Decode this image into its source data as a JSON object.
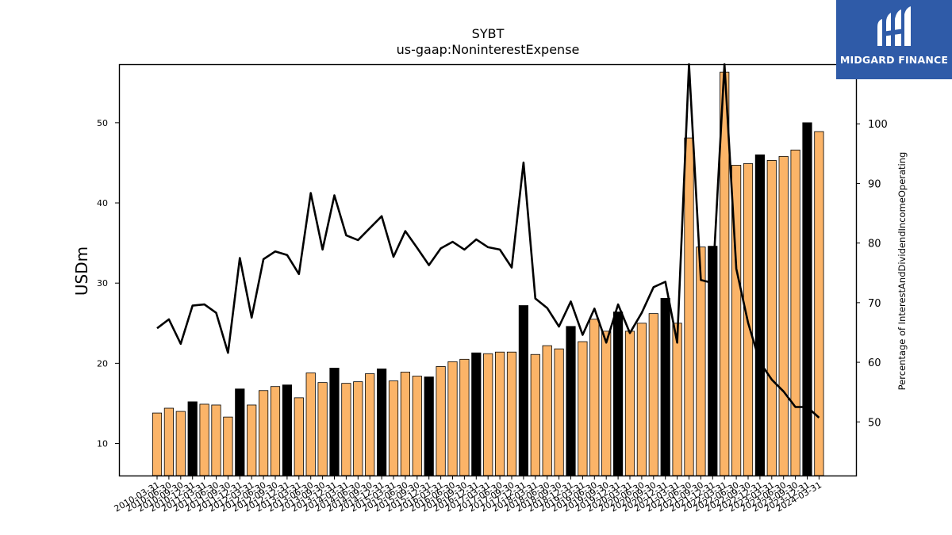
{
  "chart_data": {
    "type": "bar",
    "title": "SYBT",
    "subtitle": "us-gaap:NoninterestExpense",
    "ylabel": "USDm",
    "y2label": "Percentage of InterestAndDividendIncomeOperating",
    "ylim": [
      6,
      57.3
    ],
    "y2lim": [
      41,
      110
    ],
    "yticks": [
      10,
      20,
      30,
      40,
      50
    ],
    "y2ticks": [
      50,
      60,
      70,
      80,
      90,
      100
    ],
    "categories": [
      "2010-03-31",
      "2010-06-30",
      "2010-09-30",
      "2010-12-31",
      "2011-03-31",
      "2011-06-30",
      "2011-09-30",
      "2011-12-31",
      "2012-03-31",
      "2012-06-30",
      "2012-09-30",
      "2012-12-31",
      "2013-03-31",
      "2013-06-30",
      "2013-09-30",
      "2013-12-31",
      "2014-03-31",
      "2014-06-30",
      "2014-09-30",
      "2014-12-31",
      "2015-03-31",
      "2015-06-30",
      "2015-09-30",
      "2015-12-31",
      "2016-03-31",
      "2016-06-30",
      "2016-09-30",
      "2016-12-31",
      "2017-03-31",
      "2017-06-30",
      "2017-09-30",
      "2017-12-31",
      "2018-03-31",
      "2018-06-30",
      "2018-09-30",
      "2018-12-31",
      "2019-03-31",
      "2019-06-30",
      "2019-09-30",
      "2019-12-31",
      "2020-03-31",
      "2020-06-30",
      "2020-09-30",
      "2020-12-31",
      "2021-03-31",
      "2021-06-30",
      "2021-09-30",
      "2021-12-31",
      "2022-03-31",
      "2022-06-30",
      "2022-09-30",
      "2022-12-31",
      "2023-03-31",
      "2023-06-30",
      "2023-09-30",
      "2023-12-31",
      "2024-03-31"
    ],
    "series": [
      {
        "type": "bar",
        "axis": "left",
        "values": [
          13.8,
          14.4,
          14.0,
          15.2,
          14.9,
          14.8,
          13.3,
          16.8,
          14.8,
          16.6,
          17.1,
          17.3,
          15.7,
          18.8,
          17.6,
          19.4,
          17.5,
          17.7,
          18.7,
          19.3,
          17.8,
          18.9,
          18.4,
          18.3,
          19.6,
          20.2,
          20.5,
          21.3,
          21.2,
          21.4,
          21.4,
          27.2,
          21.1,
          22.2,
          21.8,
          24.6,
          22.7,
          25.5,
          24.0,
          26.4,
          24.0,
          25.0,
          26.2,
          28.1,
          25.0,
          48.1,
          34.5,
          34.6,
          56.3,
          44.7,
          44.9,
          46.0,
          45.3,
          45.8,
          46.6,
          50.0,
          48.9
        ],
        "colors": [
          "#fbb468",
          "#fbb468",
          "#fbb468",
          "#000000",
          "#fbb468",
          "#fbb468",
          "#fbb468",
          "#000000",
          "#fbb468",
          "#fbb468",
          "#fbb468",
          "#000000",
          "#fbb468",
          "#fbb468",
          "#fbb468",
          "#000000",
          "#fbb468",
          "#fbb468",
          "#fbb468",
          "#000000",
          "#fbb468",
          "#fbb468",
          "#fbb468",
          "#000000",
          "#fbb468",
          "#fbb468",
          "#fbb468",
          "#000000",
          "#fbb468",
          "#fbb468",
          "#fbb468",
          "#000000",
          "#fbb468",
          "#fbb468",
          "#fbb468",
          "#000000",
          "#fbb468",
          "#fbb468",
          "#fbb468",
          "#000000",
          "#fbb468",
          "#fbb468",
          "#fbb468",
          "#000000",
          "#fbb468",
          "#fbb468",
          "#fbb468",
          "#000000",
          "#fbb468",
          "#fbb468",
          "#fbb468",
          "#000000",
          "#fbb468",
          "#fbb468",
          "#fbb468",
          "#000000",
          "#fbb468"
        ]
      },
      {
        "type": "line",
        "axis": "right",
        "color": "#000000",
        "values": [
          65.7,
          67.2,
          63.1,
          69.5,
          69.7,
          68.3,
          61.6,
          77.5,
          67.5,
          77.3,
          78.6,
          78.0,
          74.8,
          88.4,
          78.9,
          88.0,
          81.3,
          80.5,
          82.5,
          84.5,
          77.7,
          82.0,
          79.2,
          76.3,
          79.1,
          80.2,
          78.9,
          80.6,
          79.3,
          78.9,
          75.9,
          93.5,
          70.7,
          69.1,
          66.0,
          70.2,
          64.6,
          69.0,
          63.3,
          69.7,
          64.9,
          68.3,
          72.6,
          73.5,
          63.3,
          110.0,
          73.8,
          73.3,
          110.0,
          75.7,
          66.6,
          60.0,
          57.1,
          55.1,
          52.5,
          52.5,
          50.7
        ]
      }
    ],
    "bar_color": "#fbb468",
    "year_end_bar_color": "#000000",
    "line_color": "#000000",
    "grid": false
  },
  "logo": {
    "text": "MIDGARD FINANCE",
    "background": "#2f5ba8",
    "icon": "midgard-logo-icon"
  }
}
